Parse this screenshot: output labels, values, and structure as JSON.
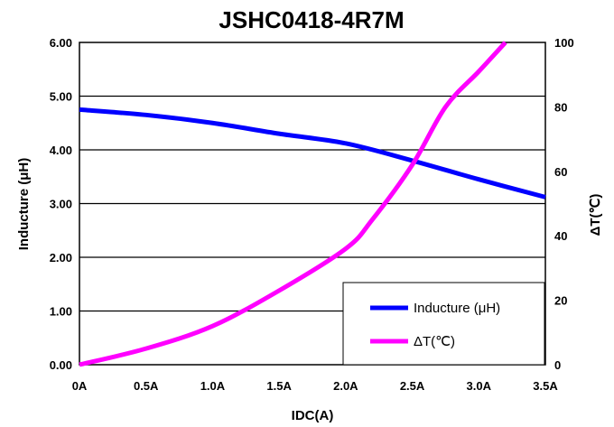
{
  "chart_data": {
    "type": "line",
    "title": "JSHC0418-4R7M",
    "xlabel": "IDC(A)",
    "ylabel": "Inducture (μH)",
    "y2label": "ΔT(℃)",
    "x_ticks": [
      "0A",
      "0.5A",
      "1.0A",
      "1.5A",
      "2.0A",
      "2.5A",
      "3.0A",
      "3.5A"
    ],
    "y_ticks": [
      "0.00",
      "1.00",
      "2.00",
      "3.00",
      "4.00",
      "5.00",
      "6.00"
    ],
    "y2_ticks": [
      "0",
      "20",
      "40",
      "60",
      "80",
      "100"
    ],
    "xlim": [
      0,
      3.5
    ],
    "ylim": [
      0,
      6
    ],
    "y2lim": [
      0,
      100
    ],
    "grid": "horizontal",
    "legend_position": "bottom-right",
    "series": [
      {
        "name": "Inducture (μH)",
        "axis": "left",
        "color": "#0000ff",
        "x": [
          0,
          0.5,
          1.0,
          1.5,
          2.0,
          2.5,
          3.0,
          3.5
        ],
        "y": [
          4.75,
          4.65,
          4.5,
          4.3,
          4.12,
          3.8,
          3.45,
          3.12
        ]
      },
      {
        "name": "ΔT(℃)",
        "axis": "right",
        "color": "#ff00ff",
        "x": [
          0,
          0.5,
          1.0,
          1.5,
          2.0,
          2.2,
          2.5,
          2.75,
          3.0,
          3.2
        ],
        "y": [
          0,
          5,
          12,
          23,
          36,
          45,
          62,
          80,
          91,
          100
        ]
      }
    ]
  }
}
